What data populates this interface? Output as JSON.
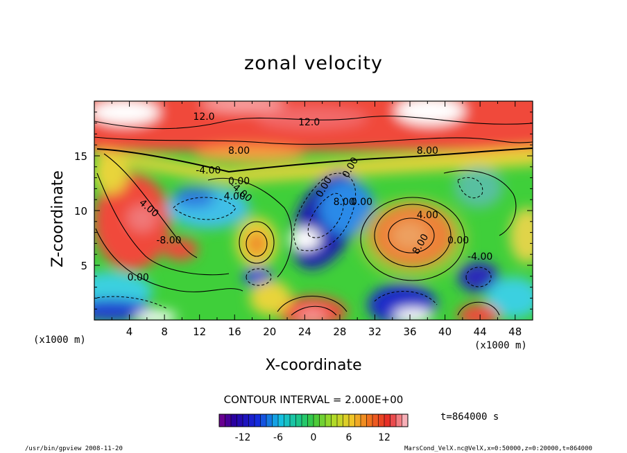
{
  "chart_data": {
    "type": "heatmap",
    "title": "zonal velocity",
    "xlabel": "X-coordinate",
    "ylabel": "Z-coordinate",
    "x_unit": "(x1000 m)",
    "y_unit": "(x1000 m)",
    "xlim": [
      0,
      50
    ],
    "ylim": [
      0,
      20
    ],
    "x_ticks": [
      4,
      8,
      12,
      16,
      20,
      24,
      28,
      32,
      36,
      40,
      44,
      48
    ],
    "y_ticks": [
      5,
      10,
      15
    ],
    "contour_labels": [
      "12.0",
      "12.0",
      "8.00",
      "8.00",
      "-4.00",
      "0.00",
      "-4.00",
      "4.00",
      "-8.00",
      "0.00",
      "0.00",
      "8.00",
      "4.00",
      "0.00",
      "-4.00",
      "0.00",
      "8.00",
      "4.00",
      "0.00"
    ],
    "colorbar": {
      "ticks": [
        -12,
        -6,
        0,
        6,
        12
      ],
      "range": [
        -16,
        16
      ]
    },
    "contour_interval": "CONTOUR INTERVAL = 2.000E+00",
    "time": "t=864000 s"
  },
  "footer": {
    "left": "/usr/bin/gpview  2008-11-20",
    "right": "MarsCond_VelX.nc@VelX,x=0:50000,z=0:20000,t=864000"
  }
}
